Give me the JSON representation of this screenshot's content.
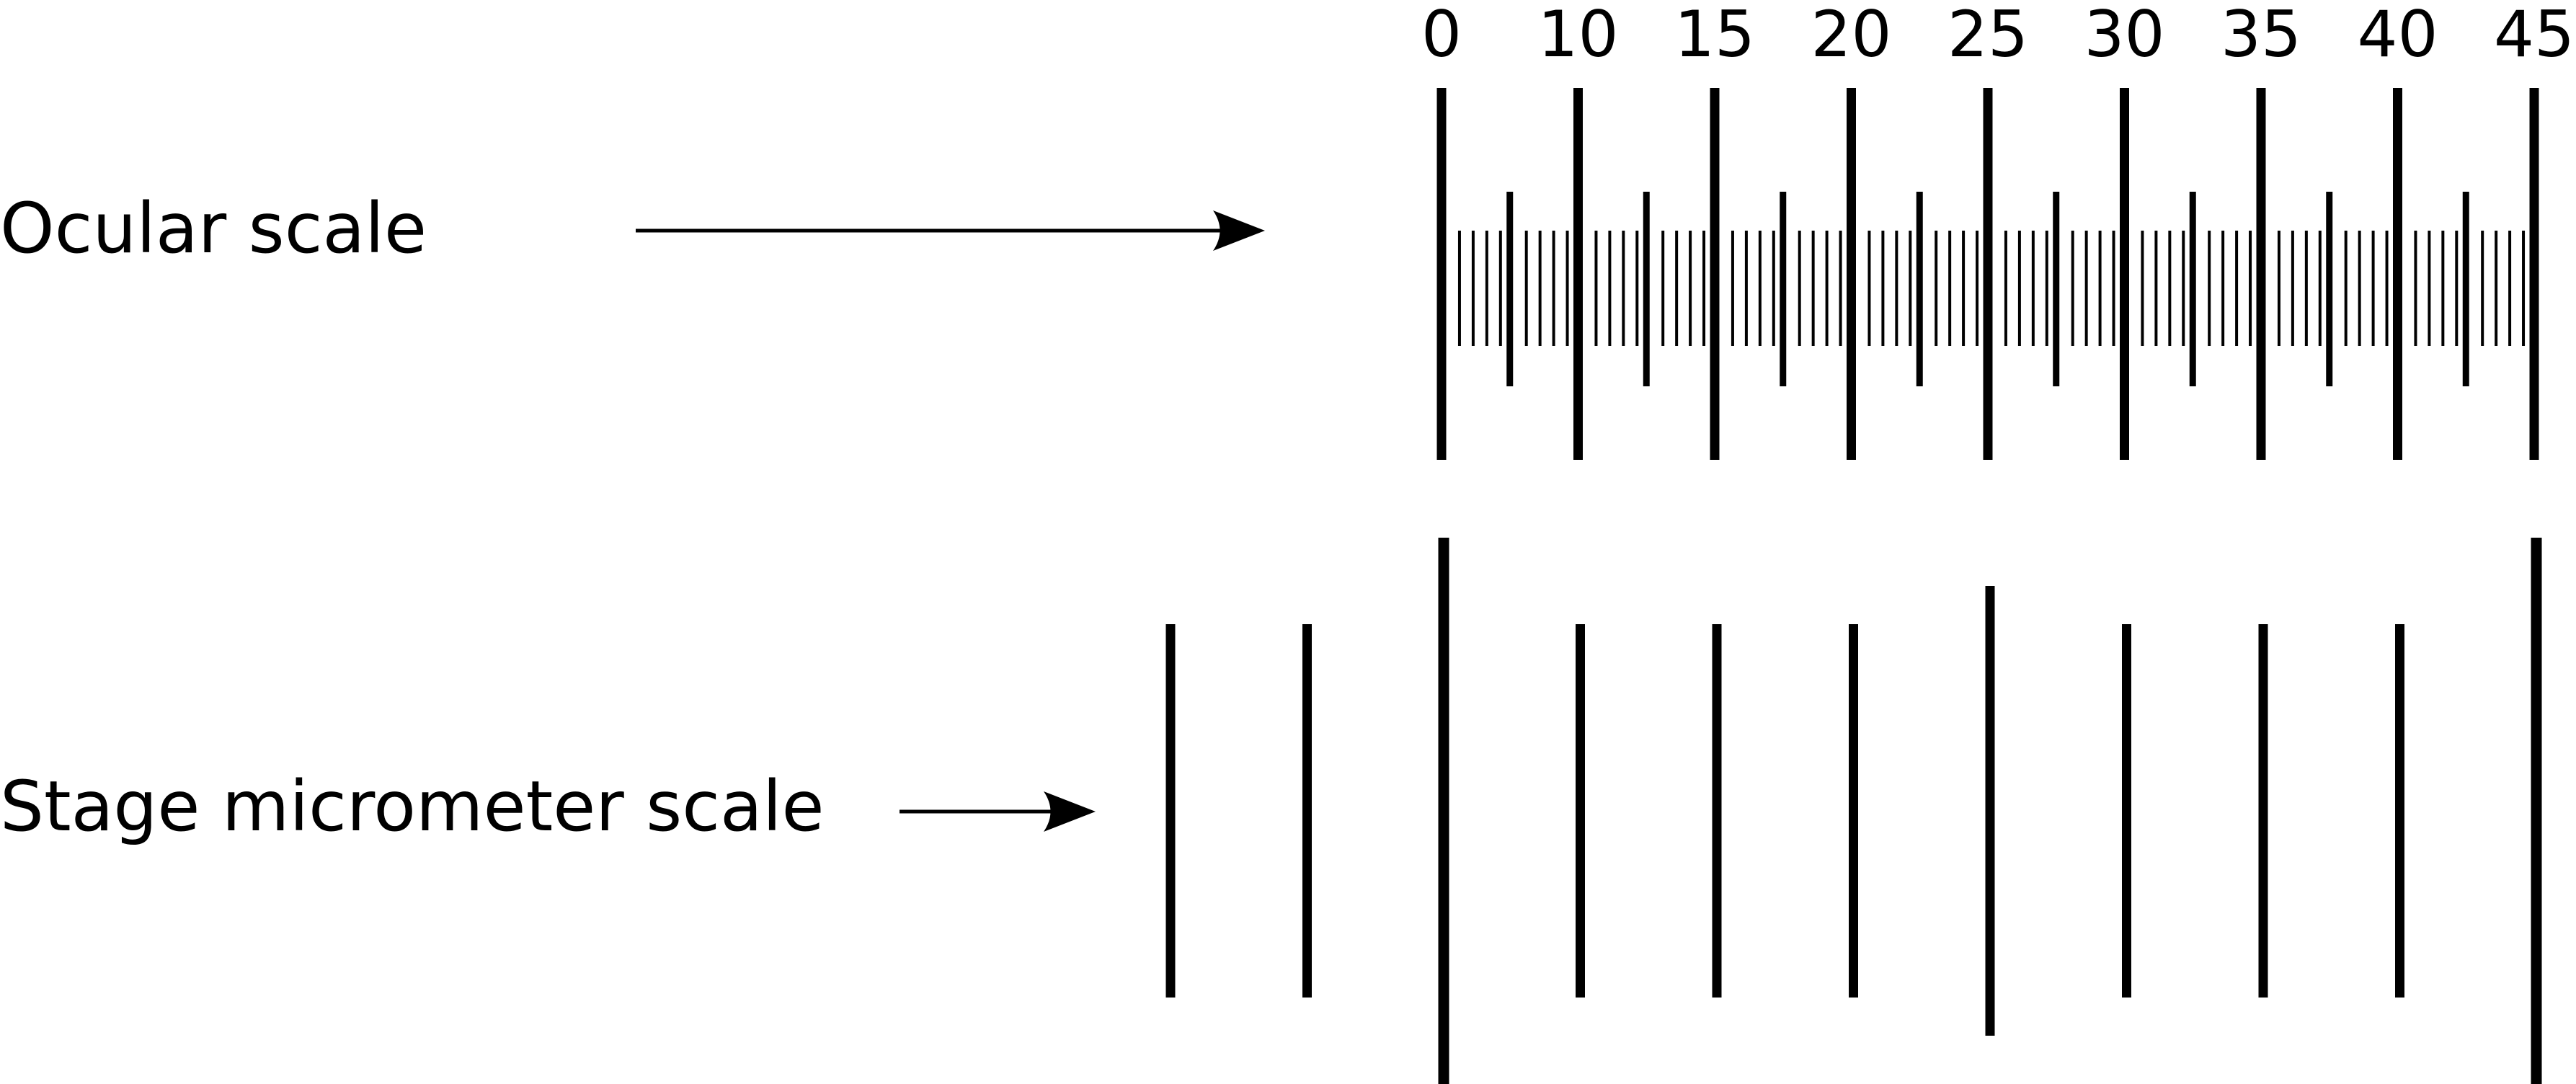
{
  "labels": {
    "ocular": "Ocular scale",
    "stage": "Stage micrometer scale"
  },
  "ocular_scale": {
    "numbers": [
      "0",
      "10",
      "15",
      "20",
      "25",
      "30",
      "35",
      "40",
      "45"
    ],
    "major_divisions": 8,
    "half_marks_per_division": 1,
    "minor_ticks_per_half": 4
  },
  "stage_scale": {
    "ticks": [
      {
        "kind": "short"
      },
      {
        "kind": "short"
      },
      {
        "kind": "long"
      },
      {
        "kind": "short"
      },
      {
        "kind": "short"
      },
      {
        "kind": "short"
      },
      {
        "kind": "medium"
      },
      {
        "kind": "short"
      },
      {
        "kind": "short"
      },
      {
        "kind": "short"
      },
      {
        "kind": "long"
      }
    ]
  },
  "colors": {
    "ink": "#000000",
    "background": "#ffffff"
  },
  "icons": [
    "arrow-right-icon"
  ]
}
